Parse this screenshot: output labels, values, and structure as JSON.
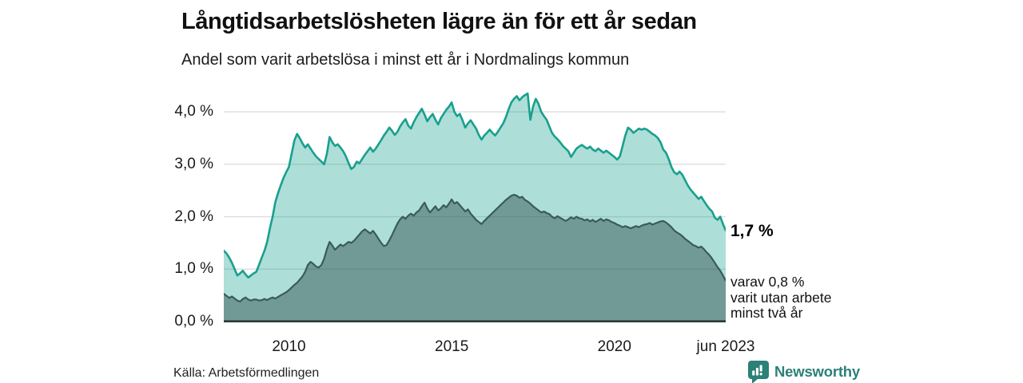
{
  "header": {
    "title": "Långtidsarbetslösheten lägre än för ett år sedan",
    "subtitle": "Andel som varit arbetslösa i minst ett år i Nordmalings kommun"
  },
  "chart_data": {
    "type": "area",
    "title": "Långtidsarbetslösheten lägre än för ett år sedan",
    "subtitle": "Andel som varit arbetslösa i minst ett år i Nordmalings kommun",
    "unit": "%",
    "x_start_year": 2008.0,
    "x_end_year": 2023.4167,
    "x_frequency": "monthly",
    "ylim": [
      0,
      4.5
    ],
    "grid": true,
    "yticks": [
      {
        "value": 0.0,
        "label": "0,0 %"
      },
      {
        "value": 1.0,
        "label": "1,0 %"
      },
      {
        "value": 2.0,
        "label": "2,0 %"
      },
      {
        "value": 3.0,
        "label": "3,0 %"
      },
      {
        "value": 4.0,
        "label": "4,0 %"
      }
    ],
    "xticks": [
      {
        "pos_years": 2.0,
        "label": "2010"
      },
      {
        "pos_years": 7.0,
        "label": "2015"
      },
      {
        "pos_years": 12.0,
        "label": "2020"
      },
      {
        "pos_years": 15.4167,
        "label": "jun 2023"
      }
    ],
    "series": [
      {
        "name": "Andel arbetslösa minst ett år",
        "line_color": "#18a08e",
        "fill_color": "rgba(24,160,142,0.35)",
        "end_value_label": "1,7 %",
        "values": [
          1.35,
          1.3,
          1.22,
          1.12,
          1.0,
          0.88,
          0.92,
          0.97,
          0.9,
          0.84,
          0.88,
          0.92,
          0.95,
          1.08,
          1.22,
          1.35,
          1.52,
          1.78,
          2.0,
          2.28,
          2.45,
          2.6,
          2.74,
          2.85,
          2.95,
          3.2,
          3.45,
          3.58,
          3.5,
          3.4,
          3.32,
          3.38,
          3.3,
          3.22,
          3.15,
          3.1,
          3.05,
          3.0,
          3.2,
          3.52,
          3.42,
          3.35,
          3.38,
          3.32,
          3.25,
          3.15,
          3.02,
          2.91,
          2.95,
          3.05,
          3.02,
          3.1,
          3.18,
          3.25,
          3.32,
          3.24,
          3.3,
          3.38,
          3.46,
          3.55,
          3.62,
          3.7,
          3.64,
          3.56,
          3.62,
          3.72,
          3.8,
          3.86,
          3.74,
          3.68,
          3.8,
          3.9,
          3.98,
          4.06,
          3.95,
          3.82,
          3.9,
          3.96,
          3.85,
          3.76,
          3.88,
          3.96,
          4.04,
          4.1,
          4.18,
          4.0,
          3.92,
          3.96,
          3.84,
          3.7,
          3.78,
          3.84,
          3.76,
          3.68,
          3.56,
          3.47,
          3.55,
          3.6,
          3.66,
          3.6,
          3.55,
          3.62,
          3.7,
          3.78,
          3.9,
          4.05,
          4.18,
          4.25,
          4.3,
          4.22,
          4.28,
          4.32,
          4.35,
          3.85,
          4.1,
          4.25,
          4.15,
          4.0,
          3.92,
          3.85,
          3.72,
          3.6,
          3.53,
          3.48,
          3.42,
          3.35,
          3.3,
          3.25,
          3.14,
          3.22,
          3.3,
          3.34,
          3.37,
          3.33,
          3.3,
          3.34,
          3.28,
          3.25,
          3.3,
          3.26,
          3.22,
          3.26,
          3.22,
          3.18,
          3.14,
          3.09,
          3.15,
          3.35,
          3.55,
          3.7,
          3.66,
          3.6,
          3.64,
          3.68,
          3.66,
          3.68,
          3.66,
          3.62,
          3.58,
          3.55,
          3.5,
          3.42,
          3.28,
          3.22,
          3.1,
          2.95,
          2.85,
          2.81,
          2.86,
          2.8,
          2.7,
          2.6,
          2.52,
          2.46,
          2.4,
          2.34,
          2.38,
          2.3,
          2.22,
          2.15,
          2.1,
          1.98,
          1.94,
          2.0,
          1.86,
          1.74
        ]
      },
      {
        "name": "varav utan arbete minst två år",
        "line_color": "#3a5a5c",
        "fill_color": "rgba(40,70,74,0.45)",
        "end_value_label": "0,8 %",
        "values": [
          0.53,
          0.49,
          0.45,
          0.48,
          0.44,
          0.4,
          0.38,
          0.43,
          0.46,
          0.42,
          0.4,
          0.42,
          0.42,
          0.4,
          0.41,
          0.43,
          0.41,
          0.44,
          0.46,
          0.44,
          0.47,
          0.5,
          0.53,
          0.56,
          0.6,
          0.65,
          0.7,
          0.74,
          0.8,
          0.86,
          0.95,
          1.08,
          1.14,
          1.1,
          1.05,
          1.03,
          1.08,
          1.2,
          1.38,
          1.52,
          1.45,
          1.37,
          1.42,
          1.47,
          1.44,
          1.48,
          1.52,
          1.5,
          1.54,
          1.6,
          1.66,
          1.72,
          1.76,
          1.72,
          1.68,
          1.73,
          1.66,
          1.58,
          1.5,
          1.44,
          1.46,
          1.55,
          1.65,
          1.76,
          1.87,
          1.95,
          2.0,
          1.96,
          2.02,
          2.06,
          2.02,
          2.08,
          2.12,
          2.2,
          2.27,
          2.16,
          2.08,
          2.14,
          2.2,
          2.12,
          2.16,
          2.22,
          2.18,
          2.25,
          2.33,
          2.25,
          2.28,
          2.22,
          2.16,
          2.1,
          2.14,
          2.06,
          2.0,
          1.94,
          1.9,
          1.86,
          1.92,
          1.97,
          2.02,
          2.07,
          2.12,
          2.17,
          2.22,
          2.27,
          2.32,
          2.36,
          2.4,
          2.42,
          2.4,
          2.36,
          2.38,
          2.32,
          2.29,
          2.25,
          2.2,
          2.16,
          2.12,
          2.08,
          2.1,
          2.07,
          2.05,
          2.0,
          1.97,
          2.01,
          1.98,
          1.95,
          1.92,
          1.95,
          1.99,
          1.96,
          2.0,
          1.97,
          1.96,
          1.93,
          1.95,
          1.91,
          1.94,
          1.9,
          1.93,
          1.96,
          1.92,
          1.95,
          1.93,
          1.9,
          1.88,
          1.85,
          1.83,
          1.8,
          1.82,
          1.8,
          1.78,
          1.8,
          1.82,
          1.8,
          1.83,
          1.85,
          1.86,
          1.88,
          1.85,
          1.87,
          1.89,
          1.91,
          1.92,
          1.89,
          1.85,
          1.8,
          1.74,
          1.7,
          1.67,
          1.63,
          1.58,
          1.54,
          1.5,
          1.46,
          1.44,
          1.41,
          1.43,
          1.38,
          1.32,
          1.27,
          1.2,
          1.12,
          1.04,
          0.97,
          0.88,
          0.78
        ]
      }
    ],
    "end_labels": {
      "primary": "1,7 %",
      "detail": [
        "varav 0,8 %",
        "varit utan arbete",
        "minst två år"
      ]
    },
    "colors": {
      "grid": "#dcdcdc",
      "axis": "#2c3a3a",
      "background": "#ffffff"
    }
  },
  "footer": {
    "source": "Källa: Arbetsförmedlingen",
    "brand": "Newsworthy",
    "brand_color": "#2b8077"
  }
}
